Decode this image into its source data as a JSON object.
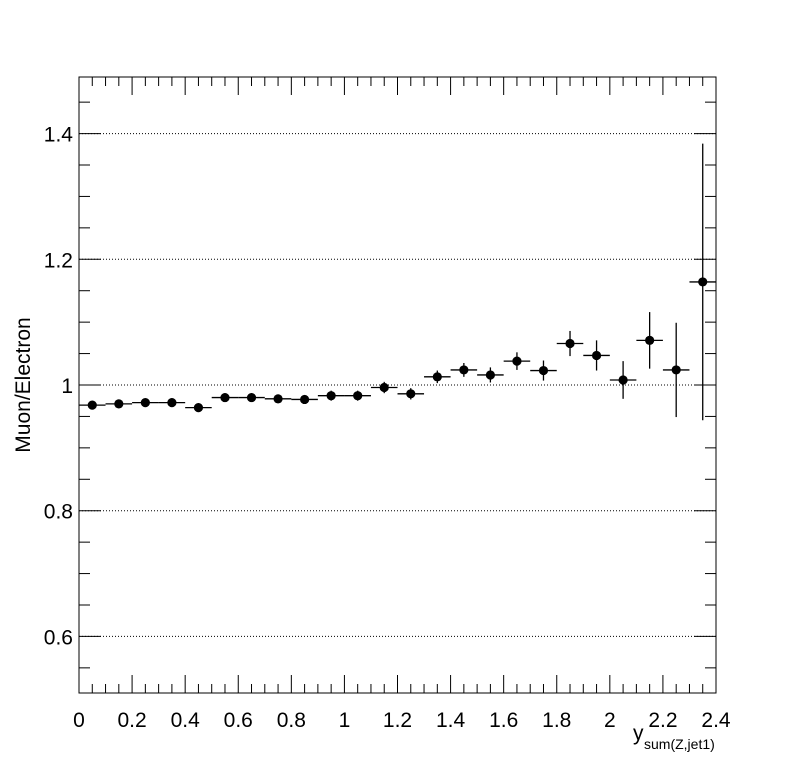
{
  "chart_data": {
    "type": "scatter",
    "title": "",
    "xlabel": "y",
    "xlabel_sub": "sum(Z,jet1)",
    "ylabel": "Muon/Electron",
    "xlim": [
      0,
      2.4
    ],
    "ylim": [
      0.51,
      1.49
    ],
    "grid": "horizontal",
    "xticks": [
      {
        "value": 0,
        "label": "0"
      },
      {
        "value": 0.2,
        "label": "0.2"
      },
      {
        "value": 0.4,
        "label": "0.4"
      },
      {
        "value": 0.6,
        "label": "0.6"
      },
      {
        "value": 0.8,
        "label": "0.8"
      },
      {
        "value": 1.0,
        "label": "1"
      },
      {
        "value": 1.2,
        "label": "1.2"
      },
      {
        "value": 1.4,
        "label": "1.4"
      },
      {
        "value": 1.6,
        "label": "1.6"
      },
      {
        "value": 1.8,
        "label": "1.8"
      },
      {
        "value": 2.0,
        "label": "2"
      },
      {
        "value": 2.2,
        "label": "2.2"
      },
      {
        "value": 2.4,
        "label": "2.4"
      }
    ],
    "yticks": [
      {
        "value": 0.6,
        "label": "0.6"
      },
      {
        "value": 0.8,
        "label": "0.8"
      },
      {
        "value": 1.0,
        "label": "1"
      },
      {
        "value": 1.2,
        "label": "1.2"
      },
      {
        "value": 1.4,
        "label": "1.4"
      }
    ],
    "points": [
      {
        "x": 0.05,
        "xerr": 0.05,
        "y": 0.968,
        "yerr": 0.006
      },
      {
        "x": 0.15,
        "xerr": 0.05,
        "y": 0.97,
        "yerr": 0.006
      },
      {
        "x": 0.25,
        "xerr": 0.05,
        "y": 0.972,
        "yerr": 0.006
      },
      {
        "x": 0.35,
        "xerr": 0.05,
        "y": 0.972,
        "yerr": 0.007
      },
      {
        "x": 0.45,
        "xerr": 0.05,
        "y": 0.964,
        "yerr": 0.007
      },
      {
        "x": 0.55,
        "xerr": 0.05,
        "y": 0.98,
        "yerr": 0.007
      },
      {
        "x": 0.65,
        "xerr": 0.05,
        "y": 0.98,
        "yerr": 0.007
      },
      {
        "x": 0.75,
        "xerr": 0.05,
        "y": 0.978,
        "yerr": 0.007
      },
      {
        "x": 0.85,
        "xerr": 0.05,
        "y": 0.977,
        "yerr": 0.007
      },
      {
        "x": 0.95,
        "xerr": 0.05,
        "y": 0.983,
        "yerr": 0.008
      },
      {
        "x": 1.05,
        "xerr": 0.05,
        "y": 0.983,
        "yerr": 0.008
      },
      {
        "x": 1.15,
        "xerr": 0.05,
        "y": 0.996,
        "yerr": 0.009
      },
      {
        "x": 1.25,
        "xerr": 0.05,
        "y": 0.986,
        "yerr": 0.009
      },
      {
        "x": 1.35,
        "xerr": 0.05,
        "y": 1.013,
        "yerr": 0.01
      },
      {
        "x": 1.45,
        "xerr": 0.05,
        "y": 1.024,
        "yerr": 0.011
      },
      {
        "x": 1.55,
        "xerr": 0.05,
        "y": 1.016,
        "yerr": 0.012
      },
      {
        "x": 1.65,
        "xerr": 0.05,
        "y": 1.038,
        "yerr": 0.014
      },
      {
        "x": 1.75,
        "xerr": 0.05,
        "y": 1.023,
        "yerr": 0.016
      },
      {
        "x": 1.85,
        "xerr": 0.05,
        "y": 1.066,
        "yerr": 0.02
      },
      {
        "x": 1.95,
        "xerr": 0.05,
        "y": 1.047,
        "yerr": 0.024
      },
      {
        "x": 2.05,
        "xerr": 0.05,
        "y": 1.008,
        "yerr": 0.03
      },
      {
        "x": 2.15,
        "xerr": 0.05,
        "y": 1.071,
        "yerr": 0.045
      },
      {
        "x": 2.25,
        "xerr": 0.05,
        "y": 1.024,
        "yerr": 0.075
      },
      {
        "x": 2.35,
        "xerr": 0.05,
        "y": 1.164,
        "yerr": 0.22
      }
    ]
  }
}
